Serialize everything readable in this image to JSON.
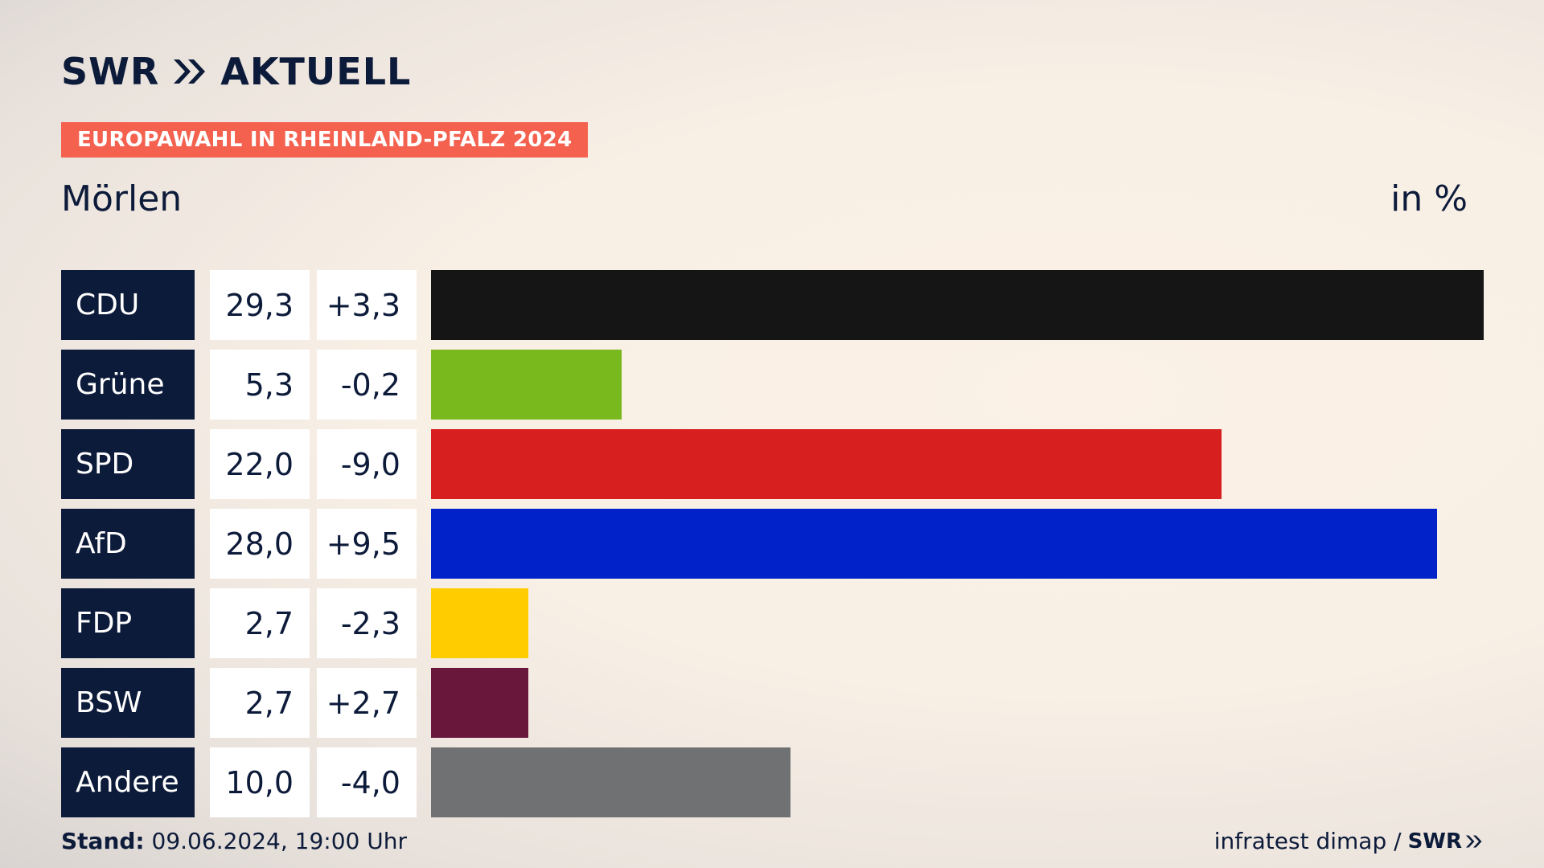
{
  "header": {
    "logo_text": "SWR",
    "logo_suffix": "AKTUELL",
    "tag": "EUROPAWAHL IN RHEINLAND-PFALZ 2024",
    "region": "Mörlen",
    "unit": "in %"
  },
  "footer": {
    "stand_label": "Stand:",
    "stand_value": "09.06.2024, 19:00 Uhr",
    "source": "infratest dimap /",
    "source_logo": "SWR"
  },
  "chart_data": {
    "type": "bar",
    "orientation": "horizontal",
    "categories": [
      "CDU",
      "Grüne",
      "SPD",
      "AfD",
      "FDP",
      "BSW",
      "Andere"
    ],
    "values": [
      29.3,
      5.3,
      22.0,
      28.0,
      2.7,
      2.7,
      10.0
    ],
    "value_labels": [
      "29,3",
      "5,3",
      "22,0",
      "28,0",
      "2,7",
      "2,7",
      "10,0"
    ],
    "diff_labels": [
      "+3,3",
      "-0,2",
      "-9,0",
      "+9,5",
      "-2,3",
      "+2,7",
      "-4,0"
    ],
    "colors": [
      "#151515",
      "#7ab91d",
      "#d81f1f",
      "#0022c8",
      "#ffcc00",
      "#6a173c",
      "#707173"
    ],
    "xlim": [
      0,
      29.3
    ]
  }
}
